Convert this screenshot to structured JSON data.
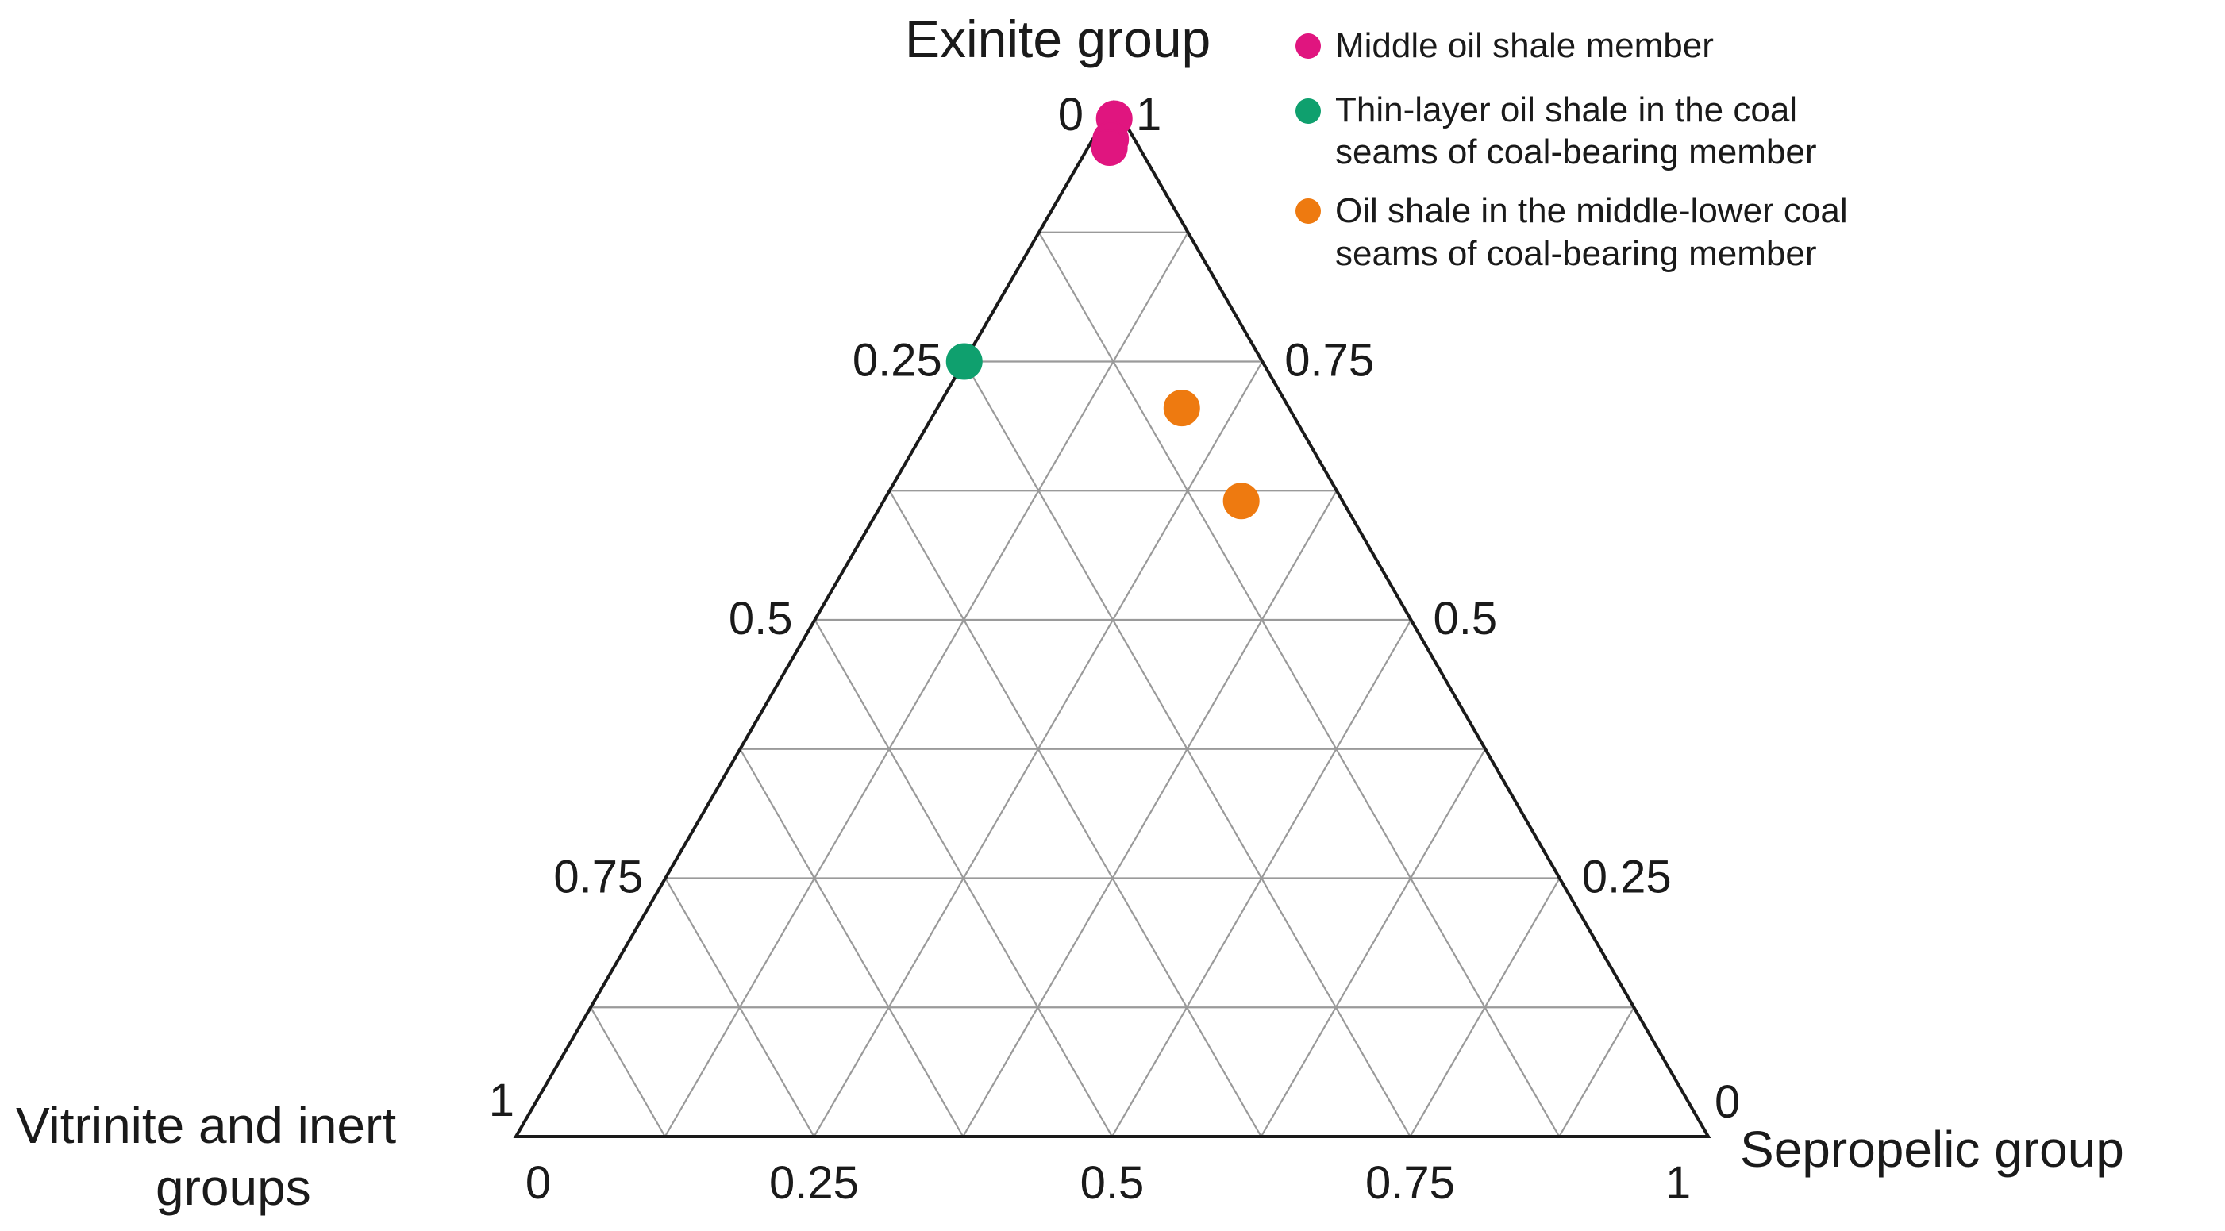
{
  "chart_data": {
    "type": "scatter",
    "subtype": "ternary",
    "grid": true,
    "grid_step": 0.125,
    "legend_position": "top-right",
    "axes": {
      "top": {
        "label": "Exinite group"
      },
      "left": {
        "label_line1": "Vitrinite and inert",
        "label_line2": "groups"
      },
      "right": {
        "label": "Sepropelic group"
      }
    },
    "tick_labels": {
      "left_edge": [
        "0",
        "0.25",
        "0.5",
        "0.75",
        "1"
      ],
      "right_edge": [
        "1",
        "0.75",
        "0.5",
        "0.25",
        "0"
      ],
      "bottom_edge": [
        "0",
        "0.25",
        "0.5",
        "0.75",
        "1"
      ]
    },
    "series": [
      {
        "name": "Middle oil shale member",
        "legend_line1": "Middle oil shale member",
        "legend_line2": "",
        "color": "#E0157F",
        "points": [
          {
            "exinite": 0.985,
            "vitrinite_inert": 0.007,
            "sepropelic": 0.008
          },
          {
            "exinite": 0.965,
            "vitrinite_inert": 0.02,
            "sepropelic": 0.015
          },
          {
            "exinite": 0.957,
            "vitrinite_inert": 0.025,
            "sepropelic": 0.018
          }
        ]
      },
      {
        "name": "Thin-layer oil shale in the coal seams of coal-bearing member",
        "legend_line1": "Thin-layer oil shale in the coal",
        "legend_line2": "seams of coal-bearing member",
        "color": "#0FA06E",
        "points": [
          {
            "exinite": 0.75,
            "vitrinite_inert": 0.25,
            "sepropelic": 0.0
          }
        ]
      },
      {
        "name": "Oil shale in the middle-lower coal seams of coal-bearing member",
        "legend_line1": "Oil shale in the middle-lower coal",
        "legend_line2": "seams of coal-bearing member",
        "color": "#EE7A10",
        "points": [
          {
            "exinite": 0.705,
            "vitrinite_inert": 0.09,
            "sepropelic": 0.205
          },
          {
            "exinite": 0.615,
            "vitrinite_inert": 0.085,
            "sepropelic": 0.3
          }
        ]
      }
    ]
  }
}
